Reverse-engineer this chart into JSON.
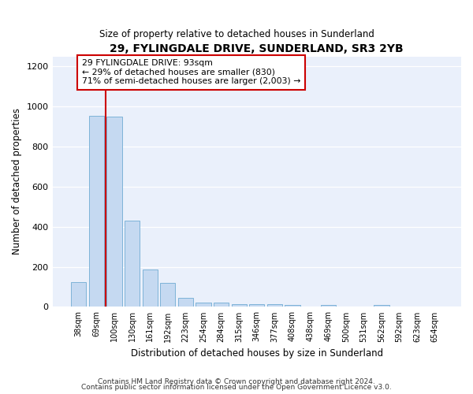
{
  "title": "29, FYLINGDALE DRIVE, SUNDERLAND, SR3 2YB",
  "subtitle": "Size of property relative to detached houses in Sunderland",
  "xlabel": "Distribution of detached houses by size in Sunderland",
  "ylabel": "Number of detached properties",
  "categories": [
    "38sqm",
    "69sqm",
    "100sqm",
    "130sqm",
    "161sqm",
    "192sqm",
    "223sqm",
    "254sqm",
    "284sqm",
    "315sqm",
    "346sqm",
    "377sqm",
    "408sqm",
    "438sqm",
    "469sqm",
    "500sqm",
    "531sqm",
    "562sqm",
    "592sqm",
    "623sqm",
    "654sqm"
  ],
  "values": [
    125,
    955,
    950,
    430,
    185,
    120,
    45,
    20,
    20,
    15,
    15,
    15,
    10,
    0,
    10,
    0,
    0,
    10,
    0,
    0,
    0
  ],
  "bar_color": "#c5d9f1",
  "bar_edge_color": "#7eb3d8",
  "vline_color": "#cc0000",
  "annotation_text": "29 FYLINGDALE DRIVE: 93sqm\n← 29% of detached houses are smaller (830)\n71% of semi-detached houses are larger (2,003) →",
  "annotation_box_color": "#cc0000",
  "ylim": [
    0,
    1250
  ],
  "yticks": [
    0,
    200,
    400,
    600,
    800,
    1000,
    1200
  ],
  "background_color": "#eaf0fb",
  "footer_line1": "Contains HM Land Registry data © Crown copyright and database right 2024.",
  "footer_line2": "Contains public sector information licensed under the Open Government Licence v3.0."
}
